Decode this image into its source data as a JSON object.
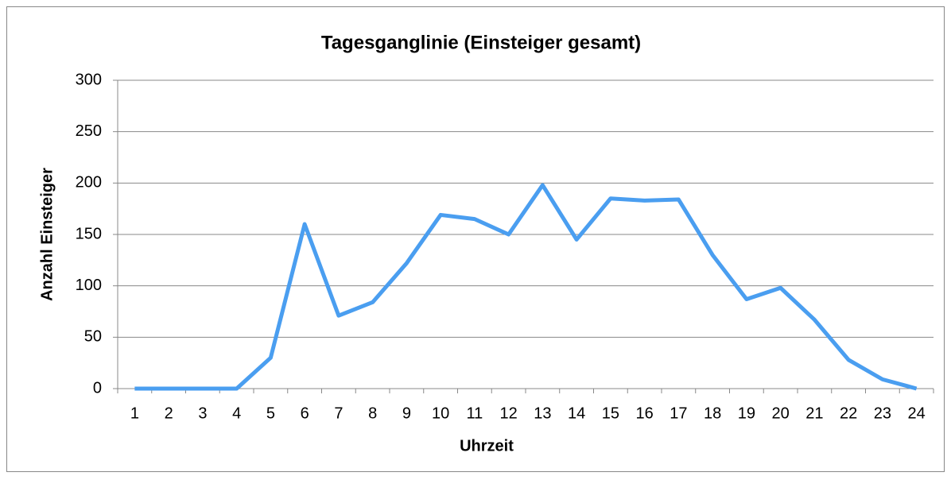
{
  "chart_data": {
    "type": "line",
    "title": "Tagesganglinie (Einsteiger gesamt)",
    "x_label": "Uhrzeit",
    "y_label": "Anzahl Einsteiger",
    "categories": [
      "1",
      "2",
      "3",
      "4",
      "5",
      "6",
      "7",
      "8",
      "9",
      "10",
      "11",
      "12",
      "13",
      "14",
      "15",
      "16",
      "17",
      "18",
      "19",
      "20",
      "21",
      "22",
      "23",
      "24"
    ],
    "series": [
      {
        "name": "Einsteiger gesamt",
        "color": "#4a9ef0",
        "values": [
          0,
          0,
          0,
          0,
          30,
          160,
          71,
          84,
          122,
          169,
          165,
          150,
          198,
          145,
          185,
          183,
          184,
          130,
          87,
          98,
          67,
          28,
          9,
          0
        ]
      }
    ],
    "ylim": [
      0,
      300
    ],
    "yticks": [
      0,
      50,
      100,
      150,
      200,
      250,
      300
    ],
    "grid": true
  }
}
